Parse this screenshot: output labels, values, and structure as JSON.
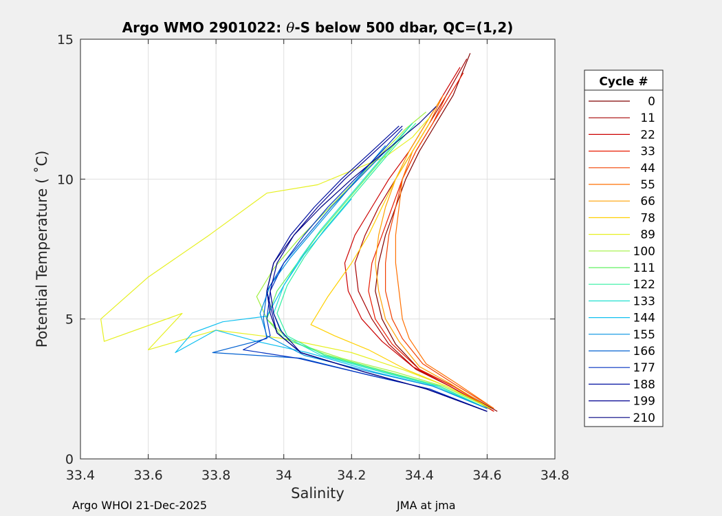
{
  "chart_data": {
    "type": "line",
    "title_prefix": "Argo WMO 2901022: ",
    "title_theta": "θ",
    "title_suffix": "-S below 500 dbar,  QC=(1,2)",
    "xlabel": "Salinity",
    "ylabel": "Potential Temperature ( ˚C)",
    "xlim": [
      33.4,
      34.8
    ],
    "ylim": [
      0,
      15
    ],
    "xticks": [
      "33.4",
      "33.6",
      "33.8",
      "34",
      "34.2",
      "34.4",
      "34.6",
      "34.8"
    ],
    "yticks": [
      "0",
      "5",
      "10",
      "15"
    ],
    "grid": true,
    "legend": {
      "title": "Cycle #",
      "placement": "outside-right",
      "entries": [
        {
          "label": "0",
          "color": "#800000"
        },
        {
          "label": "11",
          "color": "#a50000"
        },
        {
          "label": "22",
          "color": "#cc0000"
        },
        {
          "label": "33",
          "color": "#e81a00"
        },
        {
          "label": "44",
          "color": "#f24000"
        },
        {
          "label": "55",
          "color": "#ff7000"
        },
        {
          "label": "66",
          "color": "#ffa000"
        },
        {
          "label": "78",
          "color": "#ffd000"
        },
        {
          "label": "89",
          "color": "#e6f020"
        },
        {
          "label": "100",
          "color": "#a0f040"
        },
        {
          "label": "111",
          "color": "#60f060"
        },
        {
          "label": "122",
          "color": "#30f0a0"
        },
        {
          "label": "133",
          "color": "#20e0d0"
        },
        {
          "label": "144",
          "color": "#10c0f0"
        },
        {
          "label": "155",
          "color": "#0090e0"
        },
        {
          "label": "166",
          "color": "#0060d0"
        },
        {
          "label": "177",
          "color": "#0030c0"
        },
        {
          "label": "188",
          "color": "#0010a0"
        },
        {
          "label": "199",
          "color": "#000090"
        },
        {
          "label": "210",
          "color": "#000080"
        }
      ]
    },
    "profiles": [
      {
        "cycle": 0,
        "points": [
          [
            34.63,
            1.7
          ],
          [
            34.5,
            2.6
          ],
          [
            34.4,
            3.2
          ],
          [
            34.33,
            4.1
          ],
          [
            34.29,
            5
          ],
          [
            34.27,
            6
          ],
          [
            34.28,
            7
          ],
          [
            34.3,
            8
          ],
          [
            34.33,
            9
          ],
          [
            34.36,
            10
          ],
          [
            34.4,
            11
          ],
          [
            34.45,
            12
          ],
          [
            34.5,
            13
          ],
          [
            34.55,
            14.5
          ]
        ]
      },
      {
        "cycle": 11,
        "points": [
          [
            34.62,
            1.7
          ],
          [
            34.49,
            2.6
          ],
          [
            34.39,
            3.2
          ],
          [
            34.31,
            4.1
          ],
          [
            34.26,
            5
          ],
          [
            34.22,
            6
          ],
          [
            34.21,
            7
          ],
          [
            34.24,
            8
          ],
          [
            34.28,
            9
          ],
          [
            34.33,
            10
          ],
          [
            34.38,
            11
          ],
          [
            34.43,
            12
          ],
          [
            34.48,
            13
          ],
          [
            34.54,
            14.3
          ]
        ]
      },
      {
        "cycle": 22,
        "points": [
          [
            34.62,
            1.7
          ],
          [
            34.49,
            2.6
          ],
          [
            34.38,
            3.3
          ],
          [
            34.29,
            4.2
          ],
          [
            34.23,
            5
          ],
          [
            34.19,
            6
          ],
          [
            34.18,
            7
          ],
          [
            34.21,
            8
          ],
          [
            34.26,
            9
          ],
          [
            34.31,
            10
          ],
          [
            34.37,
            11
          ],
          [
            34.42,
            12
          ],
          [
            34.47,
            13
          ],
          [
            34.52,
            14
          ]
        ]
      },
      {
        "cycle": 33,
        "points": [
          [
            34.62,
            1.7
          ],
          [
            34.5,
            2.6
          ],
          [
            34.4,
            3.2
          ],
          [
            34.32,
            4.1
          ],
          [
            34.27,
            5
          ],
          [
            34.25,
            6
          ],
          [
            34.26,
            7
          ],
          [
            34.29,
            8
          ],
          [
            34.32,
            9
          ],
          [
            34.35,
            10
          ],
          [
            34.39,
            11
          ],
          [
            34.44,
            12
          ],
          [
            34.49,
            13
          ],
          [
            34.53,
            13.8
          ]
        ]
      },
      {
        "cycle": 44,
        "points": [
          [
            34.62,
            1.8
          ],
          [
            34.5,
            2.7
          ],
          [
            34.41,
            3.4
          ],
          [
            34.35,
            4.3
          ],
          [
            34.32,
            5
          ],
          [
            34.3,
            6
          ],
          [
            34.3,
            7
          ],
          [
            34.31,
            8
          ],
          [
            34.33,
            9
          ],
          [
            34.35,
            10
          ],
          [
            34.39,
            11
          ],
          [
            34.44,
            12
          ],
          [
            34.48,
            13
          ]
        ]
      },
      {
        "cycle": 55,
        "points": [
          [
            34.62,
            1.8
          ],
          [
            34.51,
            2.7
          ],
          [
            34.42,
            3.4
          ],
          [
            34.37,
            4.3
          ],
          [
            34.35,
            5
          ],
          [
            34.34,
            6
          ],
          [
            34.33,
            7
          ],
          [
            34.33,
            8
          ],
          [
            34.34,
            9
          ],
          [
            34.35,
            10
          ],
          [
            34.38,
            11
          ],
          [
            34.43,
            12
          ],
          [
            34.47,
            13
          ]
        ]
      },
      {
        "cycle": 66,
        "points": [
          [
            34.61,
            1.8
          ],
          [
            34.49,
            2.7
          ],
          [
            34.4,
            3.3
          ],
          [
            34.34,
            4.2
          ],
          [
            34.3,
            5
          ],
          [
            34.28,
            6
          ],
          [
            34.27,
            7
          ],
          [
            34.28,
            8
          ],
          [
            34.3,
            9
          ],
          [
            34.33,
            10
          ],
          [
            34.37,
            11
          ],
          [
            34.42,
            12
          ],
          [
            34.46,
            12.8
          ]
        ]
      },
      {
        "cycle": 78,
        "points": [
          [
            34.61,
            1.8
          ],
          [
            34.48,
            2.6
          ],
          [
            34.36,
            3.2
          ],
          [
            34.25,
            3.9
          ],
          [
            34.15,
            4.4
          ],
          [
            34.08,
            4.8
          ],
          [
            34.13,
            5.8
          ],
          [
            34.2,
            7
          ],
          [
            34.25,
            8
          ],
          [
            34.29,
            9
          ],
          [
            34.33,
            10
          ],
          [
            34.38,
            11
          ],
          [
            34.43,
            12
          ]
        ]
      },
      {
        "cycle": 89,
        "points": [
          [
            34.61,
            1.8
          ],
          [
            34.48,
            2.6
          ],
          [
            34.35,
            3.2
          ],
          [
            34.2,
            3.8
          ],
          [
            34.0,
            4.3
          ],
          [
            33.8,
            4.6
          ],
          [
            33.6,
            3.9
          ],
          [
            33.7,
            5.2
          ],
          [
            33.47,
            4.2
          ],
          [
            33.46,
            5
          ],
          [
            33.6,
            6.5
          ],
          [
            33.78,
            8
          ],
          [
            33.95,
            9.5
          ],
          [
            34.1,
            9.8
          ],
          [
            34.2,
            10.3
          ],
          [
            34.3,
            10.8
          ],
          [
            34.38,
            11.5
          ],
          [
            34.43,
            12.2
          ]
        ]
      },
      {
        "cycle": 100,
        "points": [
          [
            34.61,
            1.8
          ],
          [
            34.47,
            2.6
          ],
          [
            34.33,
            3.1
          ],
          [
            34.17,
            3.6
          ],
          [
            34.02,
            4.2
          ],
          [
            33.95,
            5
          ],
          [
            33.92,
            5.8
          ],
          [
            33.97,
            6.8
          ],
          [
            34.04,
            7.8
          ],
          [
            34.12,
            8.8
          ],
          [
            34.2,
            9.8
          ],
          [
            34.28,
            10.8
          ],
          [
            34.36,
            11.8
          ],
          [
            34.42,
            12.4
          ]
        ]
      },
      {
        "cycle": 111,
        "points": [
          [
            34.6,
            1.8
          ],
          [
            34.46,
            2.6
          ],
          [
            34.31,
            3.1
          ],
          [
            34.13,
            3.7
          ],
          [
            34.0,
            4.3
          ],
          [
            33.95,
            5
          ],
          [
            33.98,
            6
          ],
          [
            34.04,
            7
          ],
          [
            34.1,
            8
          ],
          [
            34.17,
            9
          ],
          [
            34.24,
            10
          ],
          [
            34.31,
            11
          ],
          [
            34.38,
            12
          ]
        ]
      },
      {
        "cycle": 122,
        "points": [
          [
            34.6,
            1.8
          ],
          [
            34.46,
            2.6
          ],
          [
            34.3,
            3.1
          ],
          [
            34.12,
            3.7
          ],
          [
            34.01,
            4.4
          ],
          [
            33.98,
            5.2
          ],
          [
            34.01,
            6.2
          ],
          [
            34.06,
            7.2
          ],
          [
            34.12,
            8.2
          ],
          [
            34.19,
            9.2
          ],
          [
            34.26,
            10.2
          ],
          [
            34.33,
            11.2
          ],
          [
            34.39,
            12
          ]
        ]
      },
      {
        "cycle": 133,
        "points": [
          [
            34.6,
            1.8
          ],
          [
            34.45,
            2.6
          ],
          [
            34.29,
            3.1
          ],
          [
            34.11,
            3.7
          ],
          [
            34.0,
            4.4
          ],
          [
            33.97,
            5.2
          ],
          [
            34.0,
            6.2
          ],
          [
            34.05,
            7.2
          ],
          [
            34.11,
            8.2
          ],
          [
            34.18,
            9.2
          ],
          [
            34.25,
            10.2
          ],
          [
            34.32,
            11.2
          ],
          [
            34.38,
            12
          ]
        ]
      },
      {
        "cycle": 144,
        "points": [
          [
            34.6,
            1.8
          ],
          [
            34.44,
            2.6
          ],
          [
            34.27,
            3.1
          ],
          [
            34.07,
            3.8
          ],
          [
            33.92,
            4.2
          ],
          [
            33.8,
            4.6
          ],
          [
            33.68,
            3.8
          ],
          [
            33.73,
            4.5
          ],
          [
            33.82,
            4.9
          ],
          [
            33.95,
            5.1
          ],
          [
            34.0,
            6.2
          ],
          [
            34.06,
            7.3
          ],
          [
            34.13,
            8.3
          ],
          [
            34.2,
            9.3
          ]
        ]
      },
      {
        "cycle": 155,
        "points": [
          [
            34.6,
            1.8
          ],
          [
            34.44,
            2.6
          ],
          [
            34.26,
            3.1
          ],
          [
            34.06,
            3.7
          ],
          [
            33.95,
            4.4
          ],
          [
            33.93,
            5.2
          ],
          [
            33.96,
            6.2
          ],
          [
            34.02,
            7.2
          ],
          [
            34.09,
            8.2
          ],
          [
            34.16,
            9.2
          ],
          [
            34.23,
            10.2
          ],
          [
            34.3,
            11.2
          ]
        ]
      },
      {
        "cycle": 166,
        "points": [
          [
            34.6,
            1.7
          ],
          [
            34.43,
            2.5
          ],
          [
            34.25,
            3.0
          ],
          [
            34.05,
            3.6
          ],
          [
            33.79,
            3.8
          ],
          [
            33.95,
            4.3
          ],
          [
            33.94,
            5
          ],
          [
            33.95,
            6
          ],
          [
            34.0,
            7
          ],
          [
            34.07,
            8
          ],
          [
            34.14,
            9
          ],
          [
            34.22,
            10
          ],
          [
            34.3,
            11
          ]
        ]
      },
      {
        "cycle": 177,
        "points": [
          [
            34.6,
            1.7
          ],
          [
            34.43,
            2.5
          ],
          [
            34.25,
            3.0
          ],
          [
            34.04,
            3.6
          ],
          [
            33.88,
            3.9
          ],
          [
            33.96,
            4.4
          ],
          [
            33.95,
            5
          ],
          [
            33.96,
            6
          ],
          [
            34.0,
            7
          ],
          [
            34.06,
            8
          ],
          [
            34.13,
            9
          ],
          [
            34.21,
            10
          ],
          [
            34.29,
            11
          ],
          [
            34.35,
            11.8
          ]
        ]
      },
      {
        "cycle": 188,
        "points": [
          [
            34.6,
            1.7
          ],
          [
            34.42,
            2.5
          ],
          [
            34.24,
            3.1
          ],
          [
            34.05,
            3.8
          ],
          [
            33.98,
            4.5
          ],
          [
            33.97,
            5
          ],
          [
            33.95,
            6
          ],
          [
            33.97,
            7
          ],
          [
            34.02,
            8
          ],
          [
            34.09,
            9
          ],
          [
            34.17,
            10
          ],
          [
            34.26,
            11
          ],
          [
            34.34,
            11.9
          ]
        ]
      },
      {
        "cycle": 199,
        "points": [
          [
            34.6,
            1.7
          ],
          [
            34.42,
            2.5
          ],
          [
            34.24,
            3.1
          ],
          [
            34.05,
            3.8
          ],
          [
            33.99,
            4.6
          ],
          [
            33.97,
            5.2
          ],
          [
            33.96,
            6
          ],
          [
            33.98,
            7
          ],
          [
            34.03,
            8
          ],
          [
            34.1,
            9
          ],
          [
            34.18,
            10
          ],
          [
            34.27,
            11
          ],
          [
            34.35,
            11.9
          ]
        ]
      },
      {
        "cycle": 210,
        "points": [
          [
            34.6,
            1.7
          ],
          [
            34.42,
            2.5
          ],
          [
            34.24,
            3.1
          ],
          [
            34.05,
            3.8
          ],
          [
            33.98,
            4.5
          ],
          [
            33.96,
            5.2
          ],
          [
            33.95,
            6
          ],
          [
            33.97,
            7
          ],
          [
            34.03,
            8
          ],
          [
            34.11,
            9
          ],
          [
            34.2,
            10
          ],
          [
            34.3,
            11
          ],
          [
            34.4,
            12
          ],
          [
            34.45,
            12.6
          ]
        ]
      }
    ]
  },
  "footer": {
    "left": "Argo WHOI 21-Dec-2025",
    "right": "JMA at jma"
  }
}
